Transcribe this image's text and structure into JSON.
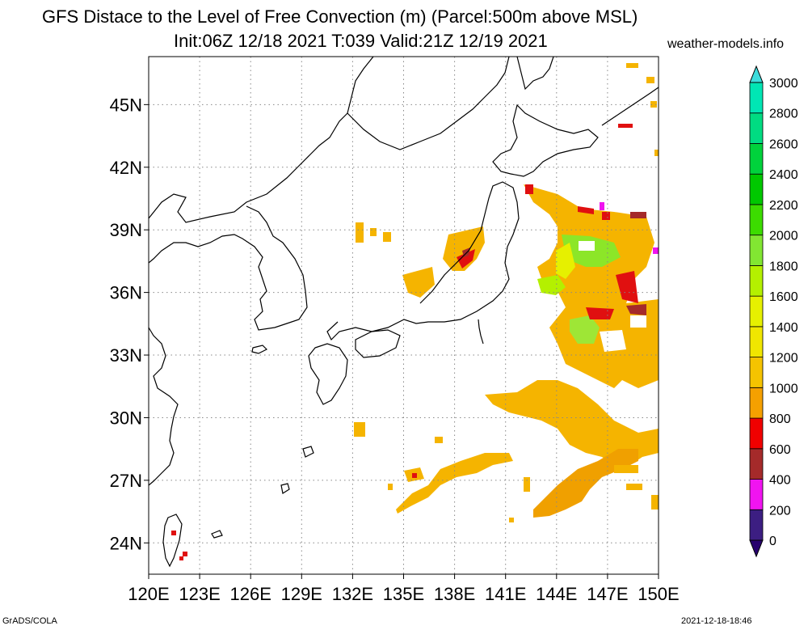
{
  "title_line1": "GFS Distace to the Level of Free Convection (m) (Parcel:500m above MSL)",
  "title_line2": "Init:06Z 12/18 2021 T:039 Valid:21Z 12/19 2021",
  "site": "weather-models.info",
  "footer_left": "GrADS/COLA",
  "footer_right": "2021-12-18-18:46",
  "map": {
    "lon_range": [
      120,
      150
    ],
    "lat_range": [
      22.5,
      47.3
    ],
    "lat_labels": [
      "45N",
      "42N",
      "39N",
      "36N",
      "33N",
      "30N",
      "27N",
      "24N"
    ],
    "lat_values": [
      45,
      42,
      39,
      36,
      33,
      30,
      27,
      24
    ],
    "lon_labels": [
      "120E",
      "123E",
      "126E",
      "129E",
      "132E",
      "135E",
      "138E",
      "141E",
      "144E",
      "147E",
      "150E"
    ],
    "lon_values": [
      120,
      123,
      126,
      129,
      132,
      135,
      138,
      141,
      144,
      147,
      150
    ],
    "grid": true
  },
  "colorbar": {
    "labels": [
      "0",
      "200",
      "400",
      "600",
      "800",
      "1000",
      "1200",
      "1400",
      "1600",
      "1800",
      "2000",
      "2200",
      "2400",
      "2600",
      "2800",
      "3000"
    ],
    "colors": [
      "#3c1e82",
      "#f014f0",
      "#a52a2a",
      "#f00000",
      "#f5a000",
      "#f5c300",
      "#f0e600",
      "#e6f000",
      "#b4f000",
      "#82e632",
      "#3cdc00",
      "#00c800",
      "#00d23c",
      "#00dc82",
      "#00e6b4",
      "#00e6dc"
    ],
    "top_triangle_color": "#3cdcdc",
    "bottom_triangle_color": "#28006e"
  }
}
